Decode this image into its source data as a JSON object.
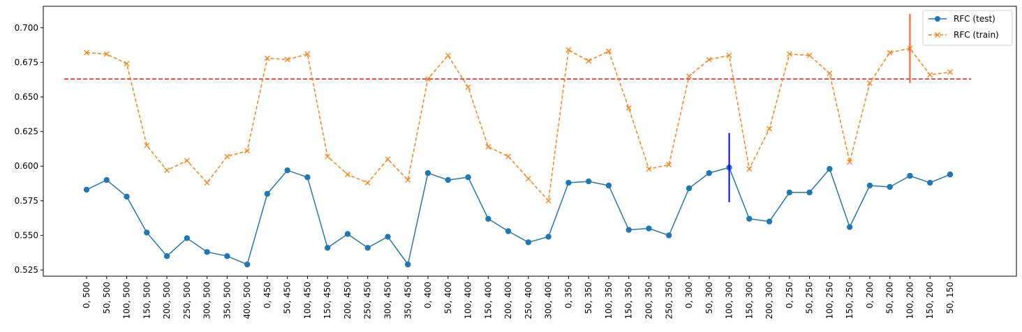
{
  "chart_data": {
    "type": "line",
    "title": "",
    "xlabel": "",
    "ylabel": "",
    "ylim": [
      0.5205,
      0.7155
    ],
    "yticks": [
      "0.525",
      "0.550",
      "0.575",
      "0.600",
      "0.625",
      "0.650",
      "0.675",
      "0.700"
    ],
    "categories": [
      "0, 500",
      "50, 500",
      "100, 500",
      "150, 500",
      "200, 500",
      "250, 500",
      "300, 500",
      "350, 500",
      "400, 500",
      "0, 450",
      "50, 450",
      "100, 450",
      "150, 450",
      "200, 450",
      "250, 450",
      "300, 450",
      "350, 450",
      "0, 400",
      "50, 400",
      "100, 400",
      "150, 400",
      "200, 400",
      "250, 400",
      "300, 400",
      "0, 350",
      "50, 350",
      "100, 350",
      "150, 350",
      "200, 350",
      "250, 350",
      "0, 300",
      "50, 300",
      "100, 300",
      "150, 300",
      "200, 300",
      "0, 250",
      "50, 250",
      "100, 250",
      "150, 250",
      "0, 200",
      "50, 200",
      "100, 200",
      "150, 200",
      "50, 150"
    ],
    "series": [
      {
        "name": "RFC (test)",
        "color": "#1f77b4",
        "marker": "circle",
        "values": [
          0.583,
          0.59,
          0.578,
          0.552,
          0.535,
          0.548,
          0.538,
          0.535,
          0.529,
          0.58,
          0.597,
          0.592,
          0.541,
          0.551,
          0.541,
          0.549,
          0.529,
          0.595,
          0.59,
          0.592,
          0.562,
          0.553,
          0.545,
          0.549,
          0.588,
          0.589,
          0.586,
          0.554,
          0.555,
          0.55,
          0.584,
          0.595,
          0.599,
          0.562,
          0.56,
          0.581,
          0.581,
          0.598,
          0.556,
          0.586,
          0.585,
          0.593,
          0.588,
          0.594
        ]
      },
      {
        "name": "RFC (train)",
        "color": "#ff7f0e",
        "marker": "x",
        "values": [
          0.682,
          0.681,
          0.674,
          0.615,
          0.597,
          0.604,
          0.588,
          0.607,
          0.611,
          0.678,
          0.677,
          0.681,
          0.607,
          0.594,
          0.588,
          0.605,
          0.59,
          0.663,
          0.68,
          0.657,
          0.614,
          0.607,
          0.591,
          0.575,
          0.684,
          0.676,
          0.683,
          0.642,
          0.598,
          0.601,
          0.665,
          0.677,
          0.68,
          0.598,
          0.627,
          0.681,
          0.68,
          0.667,
          0.603,
          0.66,
          0.682,
          0.685,
          0.666,
          0.668
        ]
      }
    ],
    "reference_line": {
      "y": 0.663,
      "color": "#e31a1c",
      "style": "dashed"
    },
    "error_bars": [
      {
        "category_index": 32,
        "low": 0.574,
        "high": 0.624,
        "color": "#0000ff"
      },
      {
        "category_index": 41,
        "low": 0.66,
        "high": 0.71,
        "color": "#ff5a1f"
      }
    ],
    "legend": {
      "placement": "top-right",
      "entries": [
        "RFC (test)",
        "RFC (train)"
      ]
    },
    "grid": false
  }
}
